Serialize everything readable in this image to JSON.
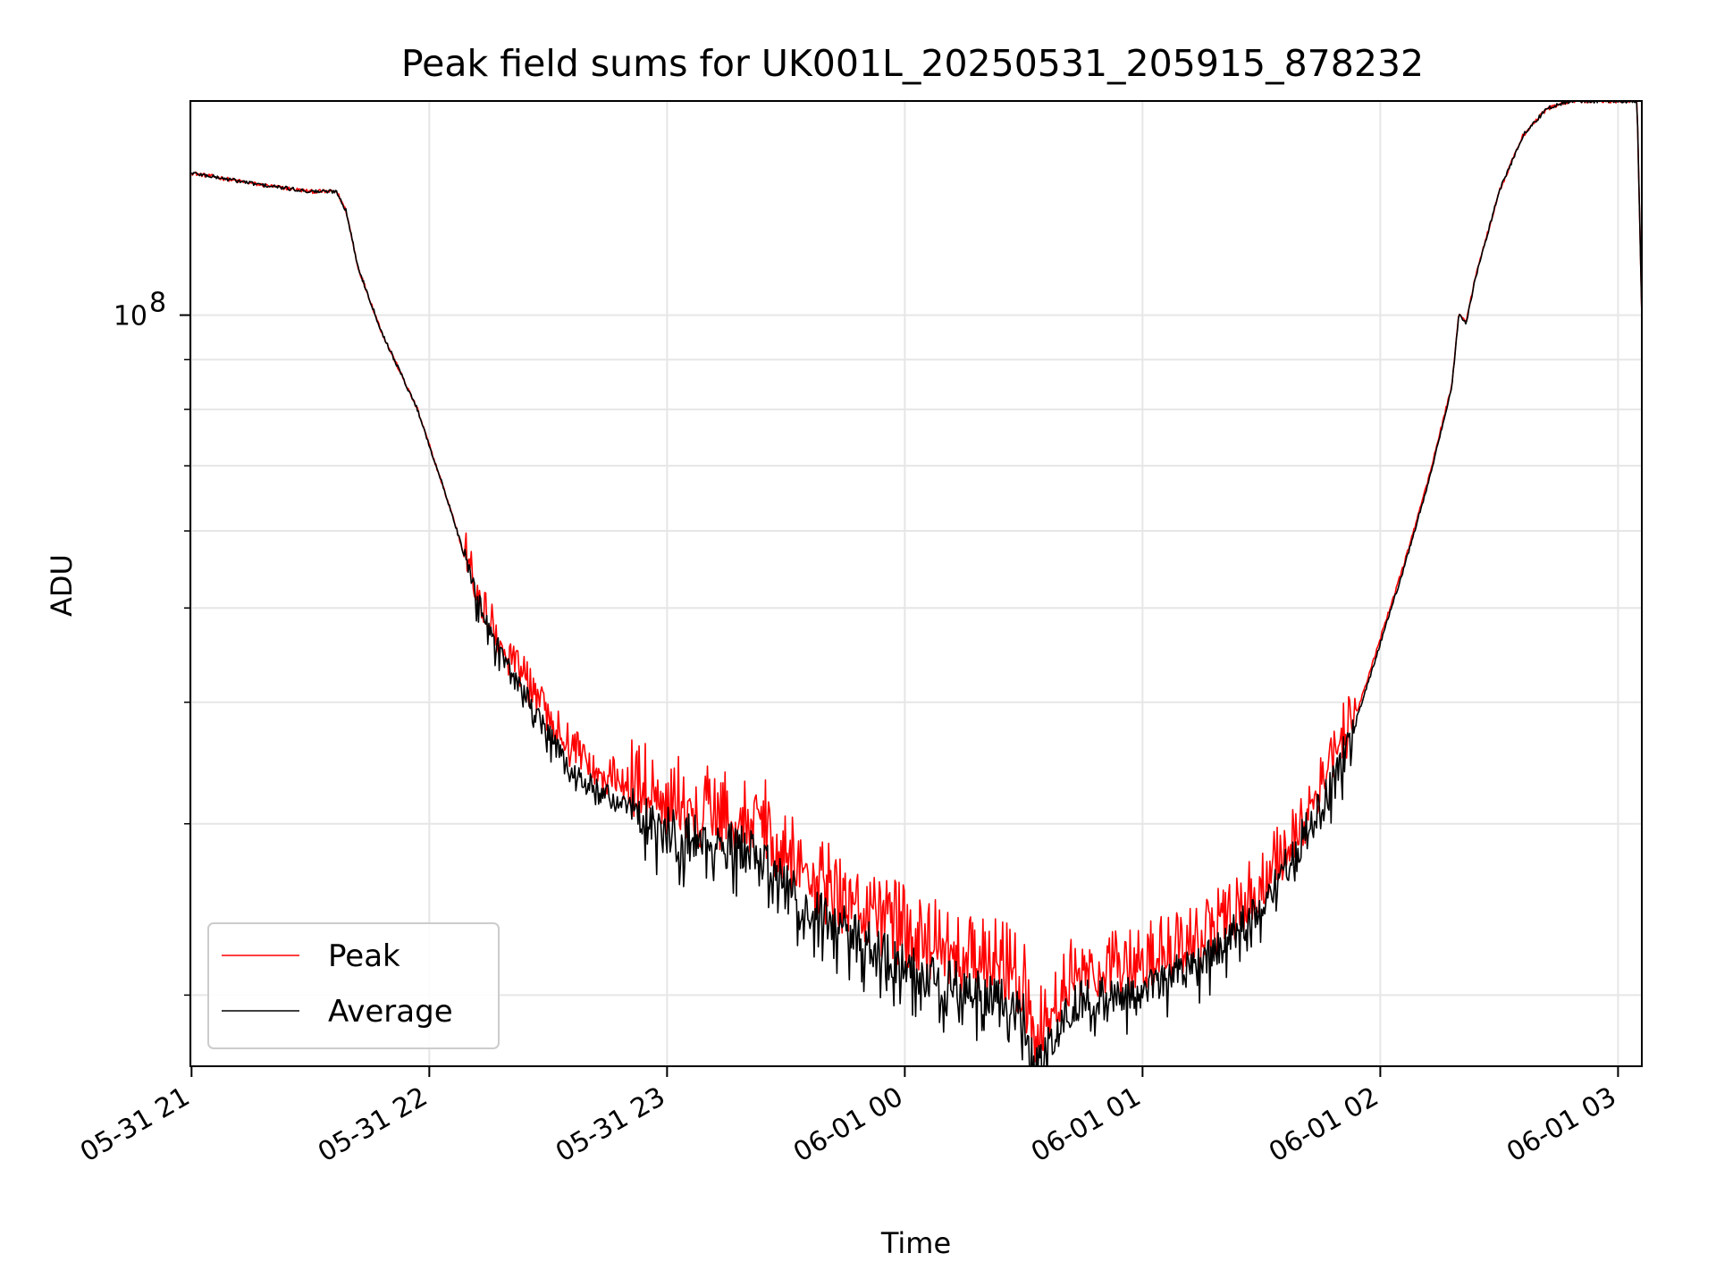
{
  "chart_data": {
    "type": "line",
    "title": "Peak field sums for UK001L_20250531_205915_878232",
    "xlabel": "Time",
    "ylabel": "ADU",
    "yscale": "log",
    "ylim": [
      16900000,
      166000000
    ],
    "xlim": [
      -0.005,
      6.1
    ],
    "x_unit": "hours since 05-31 21:00",
    "grid": true,
    "legend_position": "lower-left",
    "x_ticks": [
      {
        "value": 0,
        "label": "05-31 21"
      },
      {
        "value": 1,
        "label": "05-31 22"
      },
      {
        "value": 2,
        "label": "05-31 23"
      },
      {
        "value": 3,
        "label": "06-01 00"
      },
      {
        "value": 4,
        "label": "06-01 01"
      },
      {
        "value": 5,
        "label": "06-01 02"
      },
      {
        "value": 6,
        "label": "06-01 03"
      }
    ],
    "y_major_ticks": [
      {
        "value": 100000000,
        "base": "10",
        "exponent": "8"
      }
    ],
    "y_minor_ticks": [
      20000000,
      30000000,
      40000000,
      50000000,
      60000000,
      70000000,
      80000000,
      90000000,
      200000000
    ],
    "series": [
      {
        "name": "Average",
        "color": "#000000",
        "x": [
          0,
          0.3,
          0.5,
          0.61,
          0.65,
          0.7,
          0.8,
          0.95,
          1.1,
          1.2,
          1.3,
          1.4,
          1.5,
          1.6,
          1.75,
          1.9,
          2.0,
          2.1,
          2.3,
          2.4,
          2.5,
          2.6,
          2.7,
          2.8,
          2.95,
          3.1,
          3.3,
          3.45,
          3.5,
          3.52,
          3.55,
          3.6,
          3.65,
          3.7,
          3.75,
          3.8,
          3.9,
          4.0,
          4.1,
          4.2,
          4.3,
          4.4,
          4.5,
          4.6,
          4.7,
          4.8,
          4.85,
          4.9,
          4.95,
          5.0,
          5.1,
          5.2,
          5.3,
          5.33,
          5.36,
          5.4,
          5.5,
          5.6,
          5.7,
          5.8,
          5.9,
          6.0,
          6.08,
          6.1
        ],
        "y": [
          140000000,
          136000000,
          134000000,
          134000000,
          128000000,
          112000000,
          96000000,
          80000000,
          62000000,
          51000000,
          45000000,
          41000000,
          37000000,
          34000000,
          32000000,
          30500000,
          29500000,
          29000000,
          28400000,
          27800000,
          25800000,
          24500000,
          23700000,
          22900000,
          21800000,
          21000000,
          20100000,
          19500000,
          19000000,
          17800000,
          17000000,
          17800000,
          18500000,
          19500000,
          19800000,
          19900000,
          20100000,
          20300000,
          20800000,
          21300000,
          22200000,
          23300000,
          25000000,
          27000000,
          29800000,
          33000000,
          35500000,
          38500000,
          42000000,
          46000000,
          55000000,
          67000000,
          84000000,
          100000000,
          98000000,
          109000000,
          134000000,
          153000000,
          163000000,
          166000000,
          166000000,
          166000000,
          166000000,
          100000000
        ]
      },
      {
        "name": "Peak",
        "color": "#ff0000",
        "x": [
          0,
          0.3,
          0.5,
          0.61,
          0.65,
          0.7,
          0.8,
          0.95,
          1.1,
          1.2,
          1.3,
          1.4,
          1.5,
          1.6,
          1.75,
          1.9,
          2.0,
          2.1,
          2.3,
          2.4,
          2.5,
          2.6,
          2.7,
          2.8,
          2.95,
          3.1,
          3.3,
          3.45,
          3.5,
          3.52,
          3.55,
          3.6,
          3.65,
          3.7,
          3.75,
          3.8,
          3.9,
          4.0,
          4.1,
          4.2,
          4.3,
          4.4,
          4.5,
          4.6,
          4.7,
          4.8,
          4.85,
          4.9,
          4.95,
          5.0,
          5.1,
          5.2,
          5.3,
          5.33,
          5.36,
          5.4,
          5.5,
          5.6,
          5.7,
          5.8,
          5.9,
          6.0,
          6.08,
          6.1
        ],
        "y": [
          140000000,
          136000000,
          134000000,
          134000000,
          128000000,
          112000000,
          96000000,
          80000000,
          62000000,
          51000000,
          45000000,
          41500000,
          37800000,
          35000000,
          33000000,
          31500000,
          30700000,
          30200000,
          29600000,
          29000000,
          27000000,
          25600000,
          24700000,
          23800000,
          22700000,
          21900000,
          21000000,
          20400000,
          19800000,
          18600000,
          17900000,
          18600000,
          19300000,
          20300000,
          20600000,
          20700000,
          20800000,
          21000000,
          21500000,
          22000000,
          22900000,
          24000000,
          25600000,
          27500000,
          30200000,
          33400000,
          36000000,
          39000000,
          42500000,
          46500000,
          55500000,
          67500000,
          84500000,
          100000000,
          98500000,
          109500000,
          134000000,
          153000000,
          163000000,
          166000000,
          166000000,
          166000000,
          166000000,
          100000000
        ]
      }
    ]
  }
}
